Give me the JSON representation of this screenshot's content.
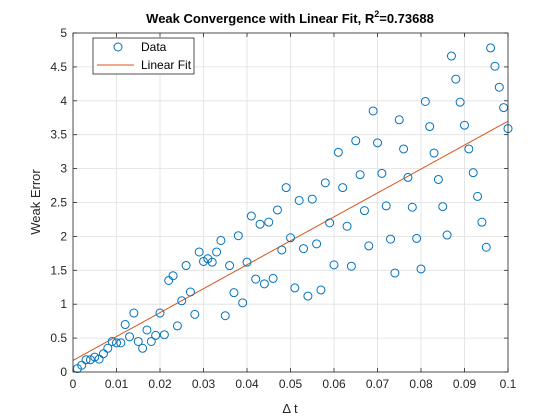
{
  "chart_data": {
    "type": "scatter",
    "title": "Weak Convergence with Linear Fit, R",
    "title_sup": "2",
    "title_tail": "=0.73688",
    "xlabel": "Δ t",
    "ylabel": "Weak Error",
    "xlim": [
      0,
      0.1
    ],
    "ylim": [
      0,
      5
    ],
    "xticks": [
      0,
      0.01,
      0.02,
      0.03,
      0.04,
      0.05,
      0.06,
      0.07,
      0.08,
      0.09,
      0.1
    ],
    "xtick_labels": [
      "0",
      "0.01",
      "0.02",
      "0.03",
      "0.04",
      "0.05",
      "0.06",
      "0.07",
      "0.08",
      "0.09",
      "0.1"
    ],
    "yticks": [
      0,
      0.5,
      1,
      1.5,
      2,
      2.5,
      3,
      3.5,
      4,
      4.5,
      5
    ],
    "ytick_labels": [
      "0",
      "0.5",
      "1",
      "1.5",
      "2",
      "2.5",
      "3",
      "3.5",
      "4",
      "4.5",
      "5"
    ],
    "grid": true,
    "legend_position": "top-left",
    "series": [
      {
        "name": "Data",
        "marker": "circle",
        "color": "#0072BD",
        "x": [
          0.001,
          0.002,
          0.003,
          0.004,
          0.005,
          0.006,
          0.007,
          0.008,
          0.009,
          0.01,
          0.011,
          0.012,
          0.013,
          0.014,
          0.015,
          0.016,
          0.017,
          0.018,
          0.019,
          0.02,
          0.021,
          0.022,
          0.023,
          0.024,
          0.025,
          0.026,
          0.027,
          0.028,
          0.029,
          0.03,
          0.031,
          0.032,
          0.033,
          0.034,
          0.035,
          0.036,
          0.037,
          0.038,
          0.039,
          0.04,
          0.041,
          0.042,
          0.043,
          0.044,
          0.045,
          0.046,
          0.047,
          0.048,
          0.049,
          0.05,
          0.051,
          0.052,
          0.053,
          0.054,
          0.055,
          0.056,
          0.057,
          0.058,
          0.059,
          0.06,
          0.061,
          0.062,
          0.063,
          0.064,
          0.065,
          0.066,
          0.067,
          0.068,
          0.069,
          0.07,
          0.071,
          0.072,
          0.073,
          0.074,
          0.075,
          0.076,
          0.077,
          0.078,
          0.079,
          0.08,
          0.081,
          0.082,
          0.083,
          0.084,
          0.085,
          0.086,
          0.087,
          0.088,
          0.089,
          0.09,
          0.091,
          0.092,
          0.093,
          0.094,
          0.095,
          0.096,
          0.097,
          0.098,
          0.099,
          0.1
        ],
        "y": [
          0.05,
          0.1,
          0.18,
          0.18,
          0.22,
          0.19,
          0.27,
          0.35,
          0.45,
          0.43,
          0.43,
          0.7,
          0.52,
          0.87,
          0.45,
          0.35,
          0.62,
          0.45,
          0.54,
          0.87,
          0.55,
          1.35,
          1.42,
          0.68,
          1.05,
          1.57,
          1.18,
          0.85,
          1.77,
          1.63,
          1.67,
          1.62,
          1.77,
          1.94,
          0.83,
          1.57,
          1.17,
          2.01,
          1.02,
          1.62,
          2.3,
          1.37,
          2.18,
          1.3,
          2.21,
          1.38,
          2.39,
          1.8,
          2.72,
          1.98,
          1.24,
          2.53,
          1.82,
          1.12,
          2.55,
          1.89,
          1.21,
          2.79,
          2.2,
          1.58,
          3.24,
          2.72,
          2.15,
          1.56,
          3.41,
          2.91,
          2.38,
          1.86,
          3.85,
          3.38,
          2.93,
          2.45,
          1.96,
          1.46,
          3.72,
          3.29,
          2.87,
          2.43,
          1.97,
          1.52,
          3.99,
          3.62,
          3.23,
          2.84,
          2.44,
          2.02,
          4.66,
          4.32,
          3.98,
          3.64,
          3.29,
          2.94,
          2.59,
          2.21,
          1.84,
          4.78,
          4.51,
          4.2,
          3.9,
          3.59
        ]
      },
      {
        "name": "Linear Fit",
        "type": "line",
        "color": "#D95319",
        "x": [
          0,
          0.1
        ],
        "y": [
          0.17,
          3.7
        ]
      }
    ]
  }
}
